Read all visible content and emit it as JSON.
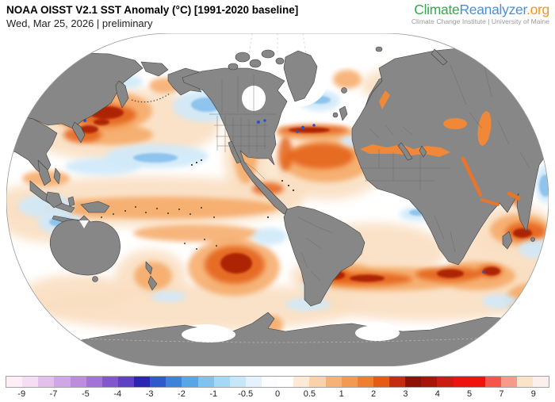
{
  "header": {
    "title": "NOAA OISST V2.1 SST Anomaly (°C) [1991-2020 baseline]",
    "subtitle": "Wed, Mar 25, 2026 | preliminary"
  },
  "logo": {
    "part1": "Climate",
    "part2": "Reanalyzer",
    "part3": ".org",
    "tagline": "Climate Change Institute | University of Maine",
    "colors": {
      "part1": "#35a94c",
      "part2": "#4a90d9",
      "part3": "#f7941e",
      "tagline": "#9a9a9a"
    }
  },
  "map": {
    "colors": {
      "land": "#878787",
      "coast": "#3f3f3f",
      "border": "#666666",
      "ice": "#ffffff",
      "ocean": "#ffffff",
      "outline": "#9a9a9a",
      "speck": "#111111",
      "graticule": "#c5c5c5"
    },
    "palette": {
      "warm_wash": "#fadfc2",
      "warm_mid": "#f5a45c",
      "warm_strong": "#e25b12",
      "warm_dark": "#a31505",
      "cool_light": "#cfe9f9",
      "cool_mid": "#6fb4e8",
      "cool_deep": "#2a52c8",
      "sea_orange": "#ef8838",
      "sea_orange2": "#e8752a"
    }
  },
  "colorbar": {
    "ticks": [
      "-9",
      "-7",
      "-5",
      "-4",
      "-3",
      "-2",
      "-1",
      "-0.5",
      "0",
      "0.5",
      "1",
      "2",
      "3",
      "4",
      "5",
      "7",
      "9"
    ],
    "segments": [
      "#fdeef7",
      "#f5ddf3",
      "#e3c0ec",
      "#cfa6e6",
      "#bb8ce0",
      "#a273d8",
      "#8257cd",
      "#5e41c4",
      "#2b25b4",
      "#2f5ac9",
      "#3c83da",
      "#55a7e8",
      "#7fc3f0",
      "#a5d7f6",
      "#c6e7fa",
      "#e3f2fc",
      "#fbfdfe",
      "#ffffff",
      "#fcead6",
      "#f9d2a8",
      "#f6b274",
      "#f39a50",
      "#ef7f30",
      "#e65b14",
      "#c52d10",
      "#8e1107",
      "#a61508",
      "#cc1c10",
      "#ee130c",
      "#f1130a",
      "#f4564a",
      "#f79a8a",
      "#fae3c6",
      "#fcf0ee"
    ]
  }
}
